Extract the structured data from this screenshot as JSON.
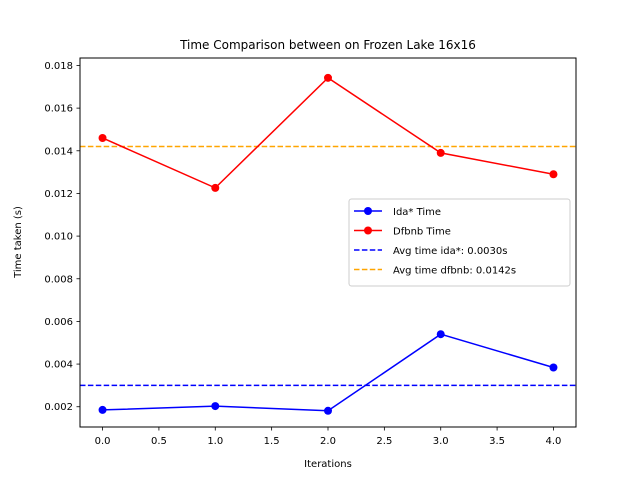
{
  "chart_data": {
    "type": "line",
    "title": "Time Comparison between on Frozen Lake 16x16",
    "xlabel": "Iterations",
    "ylabel": "Time taken (s)",
    "xlim": [
      -0.2,
      4.2
    ],
    "ylim": [
      0.00105,
      0.01835
    ],
    "grid": false,
    "legend_position": "center-right",
    "x": [
      0,
      1,
      2,
      3,
      4
    ],
    "x_ticks": [
      0.0,
      0.5,
      1.0,
      1.5,
      2.0,
      2.5,
      3.0,
      3.5,
      4.0
    ],
    "x_tick_labels": [
      "0.0",
      "0.5",
      "1.0",
      "1.5",
      "2.0",
      "2.5",
      "3.0",
      "3.5",
      "4.0"
    ],
    "y_ticks": [
      0.002,
      0.004,
      0.006,
      0.008,
      0.01,
      0.012,
      0.014,
      0.016,
      0.018
    ],
    "y_tick_labels": [
      "0.002",
      "0.004",
      "0.006",
      "0.008",
      "0.010",
      "0.012",
      "0.014",
      "0.016",
      "0.018"
    ],
    "series": [
      {
        "name": "Ida* Time",
        "color": "#0000ff",
        "marker": "circle",
        "values": [
          0.00185,
          0.00203,
          0.00181,
          0.0054,
          0.00384
        ]
      },
      {
        "name": "Dfbnb Time",
        "color": "#ff0000",
        "marker": "circle",
        "values": [
          0.0146,
          0.01226,
          0.01742,
          0.0139,
          0.0129
        ]
      }
    ],
    "reference_lines": [
      {
        "name": "Avg time ida*: 0.0030s",
        "color": "#0000ff",
        "style": "dashed",
        "value": 0.003
      },
      {
        "name": "Avg time dfbnb: 0.0142s",
        "color": "#ffa500",
        "style": "dashed",
        "value": 0.0142
      }
    ]
  }
}
